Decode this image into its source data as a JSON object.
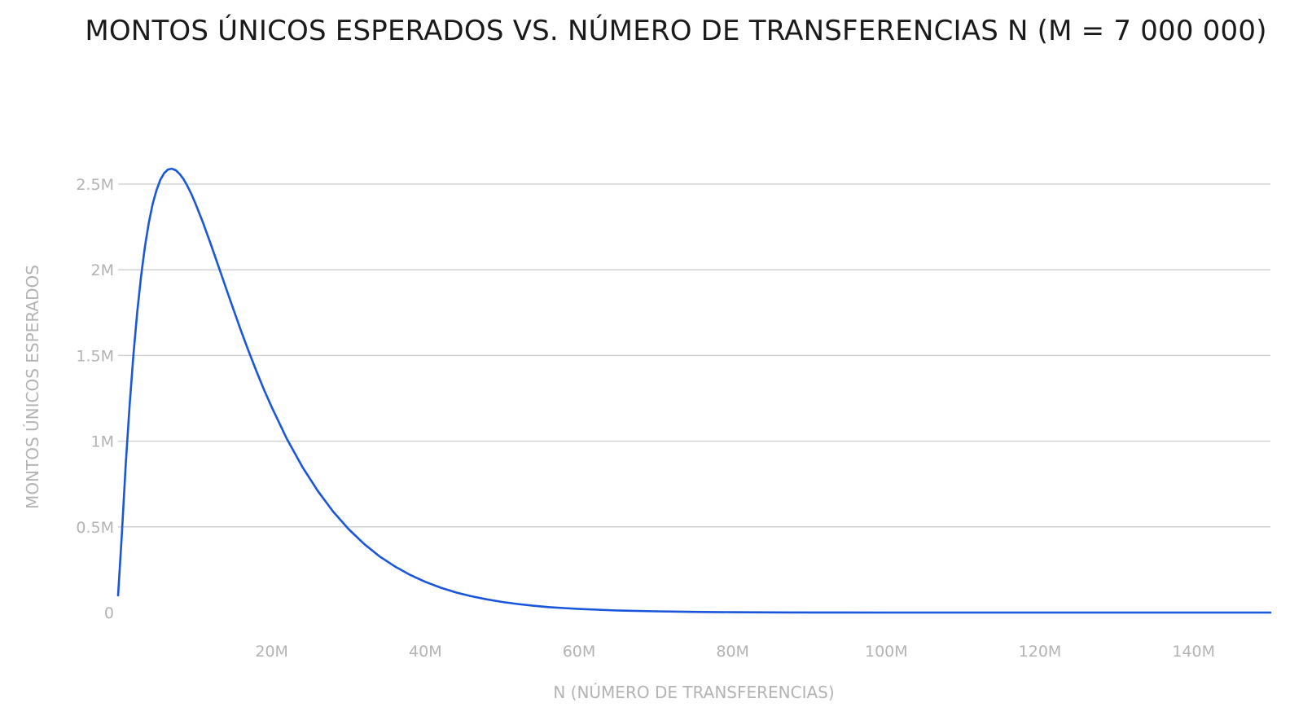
{
  "chart_data": {
    "type": "line",
    "title": "MONTOS ÚNICOS ESPERADOS VS. NÚMERO DE TRANSFERENCIAS N (M = 7 000 000)",
    "xlabel": "N (NÚMERO DE TRANSFERENCIAS)",
    "ylabel": "MONTOS ÚNICOS ESPERADOS",
    "xlim": [
      0,
      150000000
    ],
    "ylim": [
      0,
      2500000
    ],
    "x_ticks": [
      20000000,
      40000000,
      60000000,
      80000000,
      100000000,
      120000000,
      140000000
    ],
    "x_tick_labels": [
      "20M",
      "40M",
      "60M",
      "80M",
      "100M",
      "120M",
      "140M"
    ],
    "y_ticks": [
      0,
      500000,
      1000000,
      1500000,
      2000000,
      2500000
    ],
    "y_tick_labels": [
      "0",
      "0.5M",
      "1M",
      "1.5M",
      "2M",
      "2.5M"
    ],
    "grid": "horizontal",
    "legend": "none",
    "colors": {
      "series": "#1a56db",
      "grid": "#cccccc",
      "tick_text": "#b3b3b3",
      "title_text": "#1a1a1a"
    },
    "series": [
      {
        "x": [
          0,
          500000,
          1000000,
          1500000,
          2000000,
          2500000,
          3000000,
          3500000,
          4000000,
          4500000,
          5000000,
          5500000,
          6000000,
          6500000,
          7000000,
          7500000,
          8000000,
          8500000,
          9000000,
          9500000,
          10000000,
          11000000,
          12000000,
          13000000,
          14000000,
          15000000,
          16000000,
          17000000,
          18000000,
          19000000,
          20000000,
          22000000,
          24000000,
          26000000,
          28000000,
          30000000,
          32000000,
          34000000,
          36000000,
          38000000,
          40000000,
          42000000,
          44000000,
          46000000,
          48000000,
          50000000,
          52000000,
          54000000,
          56000000,
          58000000,
          60000000,
          65000000,
          70000000,
          75000000,
          80000000,
          85000000,
          90000000,
          95000000,
          100000000,
          110000000,
          120000000,
          130000000,
          140000000,
          150000000
        ],
        "values": [
          100000,
          464000,
          866000,
          1212000,
          1507000,
          1757000,
          1965000,
          2136000,
          2274000,
          2383000,
          2465000,
          2525000,
          2564000,
          2585000,
          2590000,
          2581000,
          2560000,
          2530000,
          2491000,
          2446000,
          2395000,
          2281000,
          2158000,
          2029000,
          1899000,
          1771000,
          1645000,
          1524000,
          1409000,
          1300000,
          1198000,
          1011000,
          849000,
          709000,
          589000,
          487000,
          401000,
          329000,
          270000,
          220000,
          179000,
          145000,
          117000,
          95000,
          77000,
          62000,
          50000,
          40000,
          32000,
          26000,
          21000,
          12000,
          7000,
          4000,
          2000,
          1000,
          600,
          300,
          200,
          50,
          10,
          3,
          1,
          0
        ]
      }
    ]
  }
}
